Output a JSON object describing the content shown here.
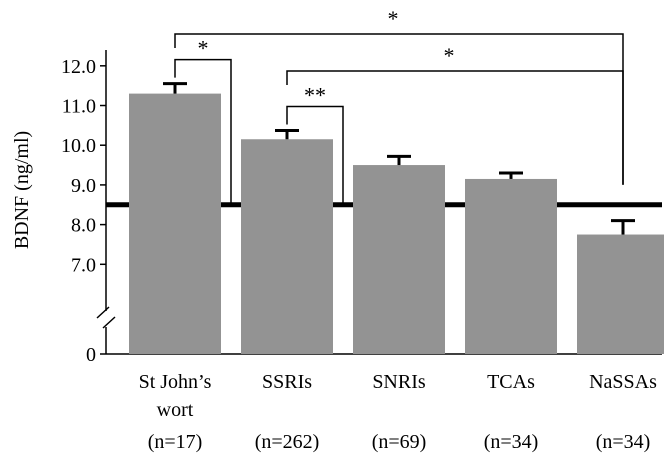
{
  "chart_data": {
    "type": "bar",
    "ylabel": "BDNF (ng/ml)",
    "ylim": [
      6.0,
      12.6
    ],
    "yticks": [
      {
        "value": 12.0,
        "label": "12.0"
      },
      {
        "value": 11.0,
        "label": "11.0"
      },
      {
        "value": 10.0,
        "label": "10.0"
      },
      {
        "value": 9.0,
        "label": "9.0"
      },
      {
        "value": 8.0,
        "label": "8.0"
      },
      {
        "value": 7.0,
        "label": "7.0"
      }
    ],
    "zero_label": "0",
    "axis_break": true,
    "bar_color": "#939393",
    "reference_line": {
      "value": 8.5,
      "color": "#000000"
    },
    "categories": [
      {
        "name": "St John’s",
        "name2": "wort",
        "n": "(n=17)",
        "value": 11.3,
        "error": 0.25
      },
      {
        "name": "SSRIs",
        "name2": "",
        "n": "(n=262)",
        "value": 10.15,
        "error": 0.22
      },
      {
        "name": "SNRIs",
        "name2": "",
        "n": "(n=69)",
        "value": 9.5,
        "error": 0.22
      },
      {
        "name": "TCAs",
        "name2": "",
        "n": "(n=34)",
        "value": 9.15,
        "error": 0.15
      },
      {
        "name": "NaSSAs",
        "name2": "",
        "n": "(n=34)",
        "value": 7.75,
        "error": 0.35
      }
    ],
    "significance": [
      {
        "from": 0,
        "to": 4,
        "label": "*"
      },
      {
        "from": 1,
        "to": 4,
        "label": "*"
      },
      {
        "from": 0,
        "to": "ref",
        "label": "*"
      },
      {
        "from": 1,
        "to": "ref",
        "label": "**"
      }
    ]
  }
}
